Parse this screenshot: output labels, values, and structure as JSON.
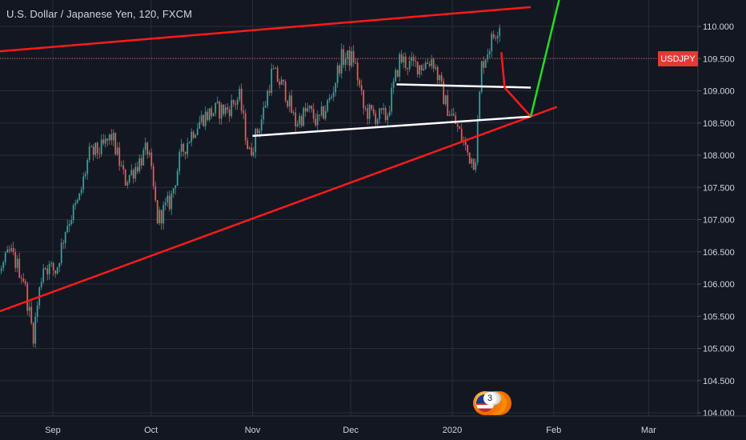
{
  "header": {
    "title": "U.S. Dollar / Japanese Yen, 120, FXCM"
  },
  "price_badge": {
    "label": "USDJPY",
    "color": "#e53935"
  },
  "event_badge": {
    "count": "3",
    "icon": "us-flag-icon"
  },
  "colors": {
    "background": "#131722",
    "up_candle": "#26a69a",
    "down_candle": "#ef5350",
    "trendline_red": "#ff1a1a",
    "trendline_white": "#ffffff",
    "projection_green": "#22dd22",
    "grid": "#2a2e39",
    "axis_text": "#d1d4dc"
  },
  "chart_data": {
    "type": "candlestick",
    "title": "U.S. Dollar / Japanese Yen, 120, FXCM",
    "symbol": "USDJPY",
    "interval": "120",
    "ylim": [
      104.0,
      110.0
    ],
    "grid": true,
    "y_ticks": [
      "110.000",
      "109.500",
      "109.000",
      "108.500",
      "108.000",
      "107.500",
      "107.000",
      "106.500",
      "106.000",
      "105.500",
      "105.000",
      "104.500",
      "104.000"
    ],
    "x_ticks": [
      {
        "label": "Sep",
        "date": "2019-09-01"
      },
      {
        "label": "Oct",
        "date": "2019-10-01"
      },
      {
        "label": "Nov",
        "date": "2019-11-01"
      },
      {
        "label": "Dec",
        "date": "2019-12-01"
      },
      {
        "label": "2020",
        "date": "2020-01-01"
      },
      {
        "label": "Feb",
        "date": "2020-02-01"
      },
      {
        "label": "Mar",
        "date": "2020-03-01"
      }
    ],
    "price_path": [
      [
        "2019-08-01",
        106.6
      ],
      [
        "2019-08-05",
        106.2
      ],
      [
        "2019-08-08",
        106.4
      ],
      [
        "2019-08-12",
        105.9
      ],
      [
        "2019-08-15",
        106.1
      ],
      [
        "2019-08-19",
        106.5
      ],
      [
        "2019-08-23",
        106.1
      ],
      [
        "2019-08-26",
        105.2
      ],
      [
        "2019-08-29",
        106.3
      ],
      [
        "2019-09-02",
        106.2
      ],
      [
        "2019-09-05",
        106.9
      ],
      [
        "2019-09-09",
        107.3
      ],
      [
        "2019-09-12",
        108.0
      ],
      [
        "2019-09-16",
        108.1
      ],
      [
        "2019-09-19",
        108.3
      ],
      [
        "2019-09-23",
        107.6
      ],
      [
        "2019-09-26",
        107.8
      ],
      [
        "2019-09-30",
        108.1
      ],
      [
        "2019-10-03",
        107.0
      ],
      [
        "2019-10-07",
        107.3
      ],
      [
        "2019-10-10",
        108.0
      ],
      [
        "2019-10-14",
        108.4
      ],
      [
        "2019-10-17",
        108.6
      ],
      [
        "2019-10-21",
        108.7
      ],
      [
        "2019-10-24",
        108.7
      ],
      [
        "2019-10-28",
        108.9
      ],
      [
        "2019-10-31",
        108.0
      ],
      [
        "2019-11-04",
        108.6
      ],
      [
        "2019-11-07",
        109.3
      ],
      [
        "2019-11-11",
        109.0
      ],
      [
        "2019-11-14",
        108.5
      ],
      [
        "2019-11-18",
        108.7
      ],
      [
        "2019-11-21",
        108.5
      ],
      [
        "2019-11-25",
        108.9
      ],
      [
        "2019-11-28",
        109.5
      ],
      [
        "2019-12-02",
        109.5
      ],
      [
        "2019-12-05",
        108.7
      ],
      [
        "2019-12-09",
        108.6
      ],
      [
        "2019-12-12",
        108.6
      ],
      [
        "2019-12-16",
        109.5
      ],
      [
        "2019-12-19",
        109.4
      ],
      [
        "2019-12-23",
        109.4
      ],
      [
        "2019-12-26",
        109.5
      ],
      [
        "2019-12-30",
        108.8
      ],
      [
        "2020-01-02",
        108.5
      ],
      [
        "2020-01-06",
        108.0
      ],
      [
        "2020-01-08",
        107.9
      ],
      [
        "2020-01-10",
        109.4
      ],
      [
        "2020-01-14",
        109.9
      ],
      [
        "2020-01-16",
        110.1
      ]
    ],
    "annotations": [
      {
        "name": "upper-resistance-line",
        "color": "red",
        "from": [
          "2019-08-01",
          109.55
        ],
        "to": [
          "2020-01-25",
          110.3
        ]
      },
      {
        "name": "lower-support-line",
        "color": "red",
        "from": [
          "2019-08-01",
          105.3
        ],
        "to": [
          "2020-02-02",
          108.75
        ]
      },
      {
        "name": "white-channel-lower",
        "color": "white",
        "from": [
          "2019-11-01",
          108.3
        ],
        "to": [
          "2020-01-25",
          108.6
        ]
      },
      {
        "name": "white-channel-upper",
        "color": "white",
        "from": [
          "2019-12-15",
          109.1
        ],
        "to": [
          "2020-01-25",
          109.05
        ]
      },
      {
        "name": "red-projection",
        "color": "red",
        "points": [
          [
            "2020-01-16",
            109.6
          ],
          [
            "2020-01-17",
            109.05
          ],
          [
            "2020-01-25",
            108.6
          ]
        ]
      },
      {
        "name": "green-projection",
        "color": "green",
        "points": [
          [
            "2020-01-25",
            108.6
          ],
          [
            "2020-02-04",
            110.7
          ]
        ]
      }
    ]
  }
}
